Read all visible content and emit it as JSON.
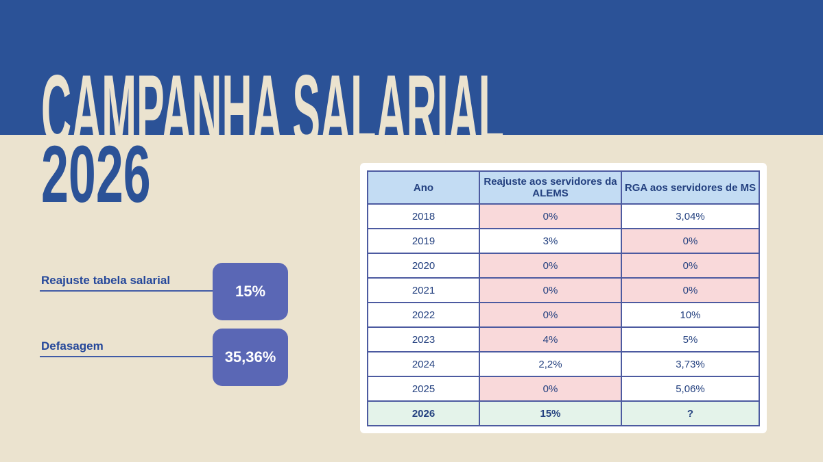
{
  "header": {
    "title": "CAMPANHA SALARIAL",
    "year": "2026"
  },
  "stats": [
    {
      "label": "Reajuste tabela salarial",
      "value": "15%"
    },
    {
      "label": "Defasagem",
      "value": "35,36%"
    }
  ],
  "table": {
    "headers": [
      "Ano",
      "Reajuste aos servidores da ALEMS",
      "RGA aos servidores de MS"
    ],
    "rows": [
      {
        "ano": "2018",
        "alems": "0%",
        "ms": "3,04%",
        "hl": [
          true,
          false
        ]
      },
      {
        "ano": "2019",
        "alems": "3%",
        "ms": "0%",
        "hl": [
          false,
          true
        ]
      },
      {
        "ano": "2020",
        "alems": "0%",
        "ms": "0%",
        "hl": [
          true,
          true
        ]
      },
      {
        "ano": "2021",
        "alems": "0%",
        "ms": "0%",
        "hl": [
          true,
          true
        ]
      },
      {
        "ano": "2022",
        "alems": "0%",
        "ms": "10%",
        "hl": [
          true,
          false
        ]
      },
      {
        "ano": "2023",
        "alems": "4%",
        "ms": "5%",
        "hl": [
          true,
          false
        ]
      },
      {
        "ano": "2024",
        "alems": "2,2%",
        "ms": "3,73%",
        "hl": [
          false,
          false
        ]
      },
      {
        "ano": "2025",
        "alems": "0%",
        "ms": "5,06%",
        "hl": [
          true,
          false
        ]
      },
      {
        "ano": "2026",
        "alems": "15%",
        "ms": "?",
        "hl": [
          false,
          false
        ]
      }
    ]
  },
  "colors": {
    "blue": "#2b5297",
    "cream": "#ebe3cf",
    "box": "#5a67b5",
    "pink": "#f9d9da",
    "green": "#e4f3ea",
    "header": "#c3dcf3"
  }
}
